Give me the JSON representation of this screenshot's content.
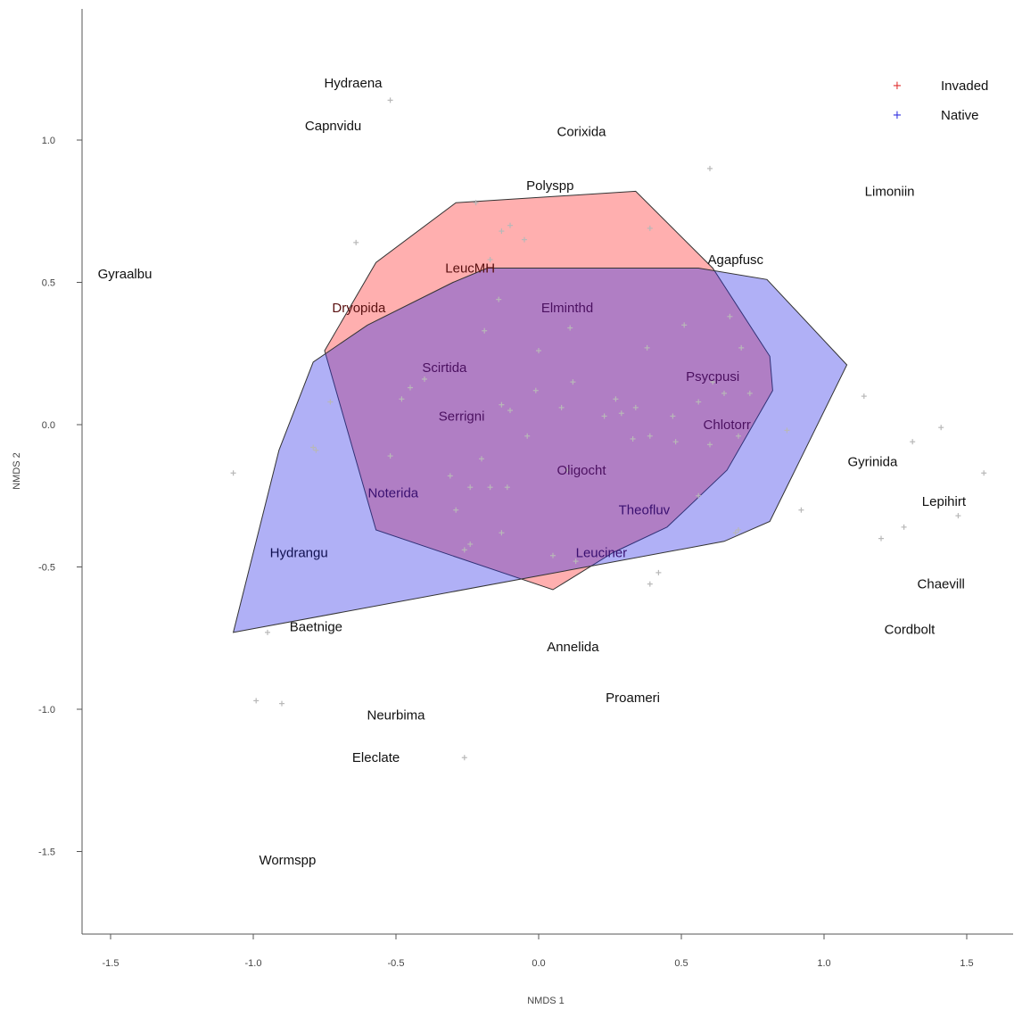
{
  "chart_data": {
    "type": "scatter",
    "xlabel": "NMDS 1",
    "ylabel": "NMDS 2",
    "xlim": [
      -1.6,
      1.65
    ],
    "ylim": [
      -1.78,
      1.45
    ],
    "xticks": [
      -1.5,
      -1.0,
      -0.5,
      0.0,
      0.5,
      1.0,
      1.5
    ],
    "yticks": [
      -1.5,
      -1.0,
      -0.5,
      0.0,
      0.5,
      1.0
    ],
    "legend": {
      "position": "top-right",
      "entries": [
        {
          "label": "Invaded",
          "color": "#e03030"
        },
        {
          "label": "Native",
          "color": "#3030e0"
        }
      ]
    },
    "hulls": [
      {
        "label": "Invaded",
        "fill": "#ff4040",
        "opacity": 0.42,
        "points": [
          [
            -0.29,
            0.78
          ],
          [
            0.34,
            0.82
          ],
          [
            0.61,
            0.55
          ],
          [
            0.81,
            0.24
          ],
          [
            0.82,
            0.12
          ],
          [
            0.66,
            -0.16
          ],
          [
            0.45,
            -0.36
          ],
          [
            0.26,
            -0.45
          ],
          [
            0.05,
            -0.58
          ],
          [
            -0.57,
            -0.37
          ],
          [
            -0.75,
            0.26
          ],
          [
            -0.57,
            0.57
          ]
        ]
      },
      {
        "label": "Native",
        "fill": "#3030e8",
        "opacity": 0.38,
        "points": [
          [
            -0.18,
            0.55
          ],
          [
            0.56,
            0.55
          ],
          [
            0.8,
            0.51
          ],
          [
            1.08,
            0.21
          ],
          [
            0.81,
            -0.34
          ],
          [
            0.65,
            -0.41
          ],
          [
            -1.07,
            -0.73
          ],
          [
            -0.91,
            -0.09
          ],
          [
            -0.79,
            0.22
          ],
          [
            -0.6,
            0.35
          ],
          [
            -0.3,
            0.5
          ]
        ]
      }
    ],
    "site_points": [
      [
        -0.52,
        1.14
      ],
      [
        0.6,
        0.9
      ],
      [
        -0.64,
        0.64
      ],
      [
        -0.22,
        0.78
      ],
      [
        -0.13,
        0.68
      ],
      [
        -0.1,
        0.7
      ],
      [
        -0.05,
        0.65
      ],
      [
        0.39,
        0.69
      ],
      [
        -0.17,
        0.58
      ],
      [
        -0.14,
        0.44
      ],
      [
        0.11,
        0.34
      ],
      [
        0.51,
        0.35
      ],
      [
        0.67,
        0.38
      ],
      [
        0.38,
        0.27
      ],
      [
        -0.19,
        0.33
      ],
      [
        0.0,
        0.26
      ],
      [
        0.71,
        0.27
      ],
      [
        -0.4,
        0.16
      ],
      [
        -0.45,
        0.13
      ],
      [
        -0.48,
        0.09
      ],
      [
        -0.13,
        0.07
      ],
      [
        -0.1,
        0.05
      ],
      [
        -0.01,
        0.12
      ],
      [
        0.12,
        0.15
      ],
      [
        0.08,
        0.06
      ],
      [
        0.27,
        0.09
      ],
      [
        0.34,
        0.06
      ],
      [
        0.29,
        0.04
      ],
      [
        0.23,
        0.03
      ],
      [
        0.56,
        0.08
      ],
      [
        0.61,
        0.15
      ],
      [
        0.65,
        0.11
      ],
      [
        0.74,
        0.11
      ],
      [
        0.47,
        0.03
      ],
      [
        0.39,
        -0.04
      ],
      [
        0.33,
        -0.05
      ],
      [
        0.48,
        -0.06
      ],
      [
        0.6,
        -0.07
      ],
      [
        0.7,
        -0.04
      ],
      [
        0.87,
        -0.02
      ],
      [
        -0.04,
        -0.04
      ],
      [
        -0.2,
        -0.12
      ],
      [
        -0.17,
        -0.22
      ],
      [
        -0.24,
        -0.22
      ],
      [
        -0.11,
        -0.22
      ],
      [
        -0.31,
        -0.18
      ],
      [
        0.1,
        -0.16
      ],
      [
        -0.73,
        0.08
      ],
      [
        -0.79,
        -0.08
      ],
      [
        -0.78,
        -0.09
      ],
      [
        -1.07,
        -0.17
      ],
      [
        -0.52,
        -0.11
      ],
      [
        -0.29,
        -0.3
      ],
      [
        -0.24,
        -0.42
      ],
      [
        -0.26,
        -0.44
      ],
      [
        -0.13,
        -0.38
      ],
      [
        0.05,
        -0.46
      ],
      [
        0.13,
        -0.48
      ],
      [
        0.56,
        -0.25
      ],
      [
        0.69,
        -0.38
      ],
      [
        0.7,
        -0.37
      ],
      [
        0.92,
        -0.3
      ],
      [
        1.14,
        0.1
      ],
      [
        1.31,
        -0.06
      ],
      [
        1.41,
        -0.01
      ],
      [
        1.2,
        -0.4
      ],
      [
        1.28,
        -0.36
      ],
      [
        1.47,
        -0.32
      ],
      [
        1.56,
        -0.17
      ],
      [
        0.39,
        -0.56
      ],
      [
        0.42,
        -0.52
      ],
      [
        -0.95,
        -0.73
      ],
      [
        -0.99,
        -0.97
      ],
      [
        -0.9,
        -0.98
      ],
      [
        -0.26,
        -1.17
      ]
    ],
    "species_labels": [
      {
        "text": "Hydraena",
        "x": -0.65,
        "y": 1.2,
        "color": "#111111"
      },
      {
        "text": "Capnvidu",
        "x": -0.72,
        "y": 1.05,
        "color": "#111111"
      },
      {
        "text": "Corixida",
        "x": 0.15,
        "y": 1.03,
        "color": "#111111"
      },
      {
        "text": "Polyspp",
        "x": 0.04,
        "y": 0.84,
        "color": "#111111"
      },
      {
        "text": "Limoniin",
        "x": 1.23,
        "y": 0.82,
        "color": "#111111"
      },
      {
        "text": "Gyraalbu",
        "x": -1.45,
        "y": 0.53,
        "color": "#111111"
      },
      {
        "text": "Agapfusc",
        "x": 0.69,
        "y": 0.58,
        "color": "#111111"
      },
      {
        "text": "LeucMH",
        "x": -0.24,
        "y": 0.55,
        "color": "#5a1010"
      },
      {
        "text": "Dryopida",
        "x": -0.63,
        "y": 0.41,
        "color": "#5a1010"
      },
      {
        "text": "Elminthd",
        "x": 0.1,
        "y": 0.41,
        "color": "#4b1060"
      },
      {
        "text": "Scirtida",
        "x": -0.33,
        "y": 0.2,
        "color": "#4b1060"
      },
      {
        "text": "Psycpusi",
        "x": 0.61,
        "y": 0.17,
        "color": "#4b1060"
      },
      {
        "text": "Serrigni",
        "x": -0.27,
        "y": 0.03,
        "color": "#4b1060"
      },
      {
        "text": "Chlotorr",
        "x": 0.66,
        "y": 0.0,
        "color": "#4b1060"
      },
      {
        "text": "Gyrinida",
        "x": 1.17,
        "y": -0.13,
        "color": "#111111"
      },
      {
        "text": "Oligocht",
        "x": 0.15,
        "y": -0.16,
        "color": "#4b1060"
      },
      {
        "text": "Noterida",
        "x": -0.51,
        "y": -0.24,
        "color": "#3a1070"
      },
      {
        "text": "Lepihirt",
        "x": 1.42,
        "y": -0.27,
        "color": "#111111"
      },
      {
        "text": "Theofluv",
        "x": 0.37,
        "y": -0.3,
        "color": "#3a1070"
      },
      {
        "text": "Hydrangu",
        "x": -0.84,
        "y": -0.45,
        "color": "#101050"
      },
      {
        "text": "Leuciner",
        "x": 0.22,
        "y": -0.45,
        "color": "#3a1070"
      },
      {
        "text": "Chaevill",
        "x": 1.41,
        "y": -0.56,
        "color": "#111111"
      },
      {
        "text": "Baetnige",
        "x": -0.78,
        "y": -0.71,
        "color": "#111111"
      },
      {
        "text": "Cordbolt",
        "x": 1.3,
        "y": -0.72,
        "color": "#111111"
      },
      {
        "text": "Annelida",
        "x": 0.12,
        "y": -0.78,
        "color": "#111111"
      },
      {
        "text": "Proameri",
        "x": 0.33,
        "y": -0.96,
        "color": "#111111"
      },
      {
        "text": "Neurbima",
        "x": -0.5,
        "y": -1.02,
        "color": "#111111"
      },
      {
        "text": "Eleclate",
        "x": -0.57,
        "y": -1.17,
        "color": "#111111"
      },
      {
        "text": "Wormspp",
        "x": -0.88,
        "y": -1.53,
        "color": "#111111"
      }
    ]
  }
}
